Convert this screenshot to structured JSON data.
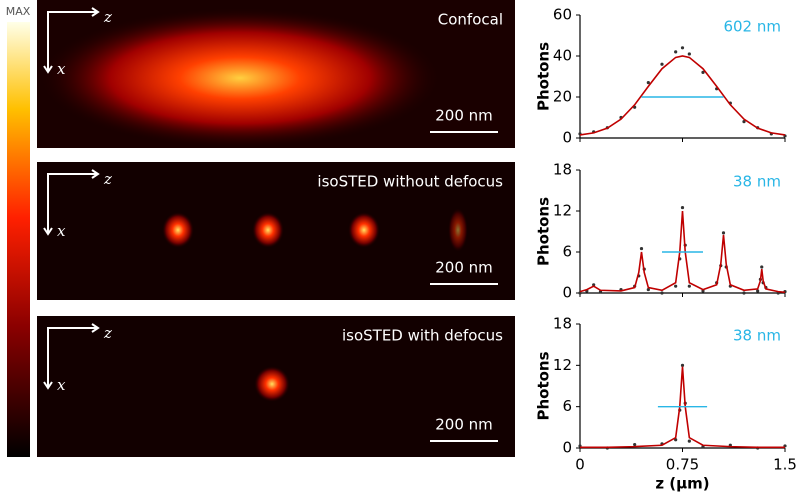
{
  "colorbar_label": "MAX",
  "images": [
    {
      "label": "Confocal",
      "scale_bar": "200 nm",
      "axis_labels": [
        "z",
        "x"
      ]
    },
    {
      "label": "isoSTED without defocus",
      "scale_bar": "200 nm",
      "axis_labels": [
        "z",
        "x"
      ]
    },
    {
      "label": "isoSTED with defocus",
      "scale_bar": "200 nm",
      "axis_labels": [
        "z",
        "x"
      ]
    }
  ],
  "chart_data": [
    {
      "type": "line",
      "ylabel": "Photons",
      "annotation": "602 nm",
      "xlim": [
        0,
        1.5
      ],
      "xticks": [
        0,
        0.75,
        1.5
      ],
      "ylim": [
        0,
        60
      ],
      "yticks": [
        0,
        20,
        40,
        60
      ],
      "fwhm_line": {
        "x": [
          0.45,
          1.05
        ],
        "y": 20,
        "color": "#29b6e6"
      },
      "x": [
        0,
        0.1,
        0.2,
        0.3,
        0.4,
        0.5,
        0.6,
        0.7,
        0.75,
        0.8,
        0.9,
        1.0,
        1.1,
        1.2,
        1.3,
        1.4,
        1.5
      ],
      "series": [
        {
          "color": "#333333",
          "style": "points",
          "values": [
            2,
            3,
            5,
            10,
            15,
            27,
            36,
            42,
            44,
            41,
            32,
            24,
            17,
            8,
            5,
            2,
            1
          ]
        },
        {
          "color": "#c00000",
          "style": "line",
          "values": [
            1.5,
            2.5,
            4.8,
            9.2,
            16.2,
            25.2,
            33.8,
            39.3,
            40,
            39.3,
            33.8,
            25.2,
            16.2,
            9.2,
            4.8,
            2.5,
            1.5
          ]
        }
      ]
    },
    {
      "type": "line",
      "ylabel": "Photons",
      "annotation": "38 nm",
      "xlim": [
        0,
        1.5
      ],
      "xticks": [
        0,
        0.75,
        1.5
      ],
      "ylim": [
        0,
        18
      ],
      "yticks": [
        0,
        6,
        12,
        18
      ],
      "fwhm_line": {
        "x": [
          0.6,
          0.9
        ],
        "y": 6,
        "color": "#29b6e6"
      },
      "x": [
        0,
        0.05,
        0.1,
        0.15,
        0.3,
        0.4,
        0.43,
        0.45,
        0.47,
        0.5,
        0.6,
        0.7,
        0.73,
        0.75,
        0.77,
        0.8,
        0.9,
        1.0,
        1.03,
        1.05,
        1.07,
        1.1,
        1.2,
        1.3,
        1.32,
        1.33,
        1.34,
        1.36,
        1.45,
        1.5
      ],
      "series": [
        {
          "color": "#333333",
          "style": "points",
          "values": [
            0,
            0.3,
            1.2,
            0.2,
            0.5,
            1,
            2.5,
            6.5,
            3.5,
            0.5,
            0,
            1,
            5,
            12.5,
            7,
            1,
            0.3,
            1.5,
            4,
            8.8,
            3.8,
            1,
            0,
            0.3,
            2,
            3.8,
            1.5,
            0.8,
            0,
            0.2
          ]
        },
        {
          "color": "#c00000",
          "style": "line",
          "values": [
            0.2,
            0.5,
            1,
            0.4,
            0.3,
            0.8,
            3,
            6,
            3,
            0.8,
            0.4,
            1.5,
            6,
            12,
            6,
            1.5,
            0.5,
            1.2,
            4.2,
            8.5,
            4.2,
            1.2,
            0.4,
            0.6,
            1.8,
            3.5,
            1.8,
            0.6,
            0.2,
            0.1
          ]
        }
      ]
    },
    {
      "type": "line",
      "ylabel": "Photons",
      "annotation": "38 nm",
      "xlabel": "z (µm)",
      "xlim": [
        0,
        1.5
      ],
      "xticks": [
        0,
        0.75,
        1.5
      ],
      "ylim": [
        0,
        18
      ],
      "yticks": [
        0,
        6,
        12,
        18
      ],
      "fwhm_line": {
        "x": [
          0.57,
          0.93
        ],
        "y": 6,
        "color": "#29b6e6"
      },
      "x": [
        0,
        0.2,
        0.4,
        0.6,
        0.7,
        0.73,
        0.75,
        0.77,
        0.8,
        0.9,
        1.1,
        1.3,
        1.5
      ],
      "series": [
        {
          "color": "#333333",
          "style": "points",
          "values": [
            0.3,
            0,
            0.5,
            0.6,
            1.2,
            5.5,
            12,
            6.5,
            1,
            0.2,
            0.4,
            0,
            0.3
          ]
        },
        {
          "color": "#c00000",
          "style": "line",
          "values": [
            0.1,
            0.1,
            0.2,
            0.4,
            1.5,
            6,
            11.8,
            6,
            1.5,
            0.4,
            0.2,
            0.1,
            0.1
          ]
        }
      ]
    }
  ]
}
